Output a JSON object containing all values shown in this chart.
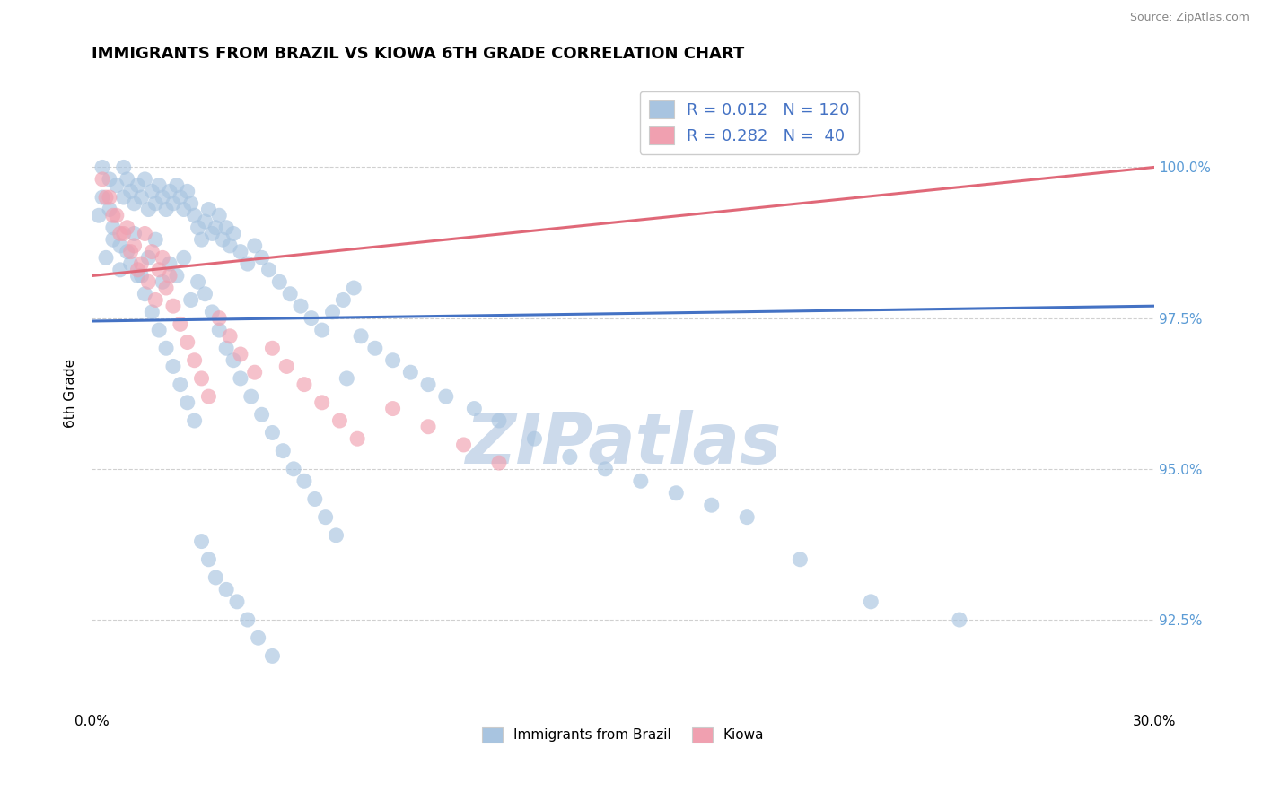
{
  "title": "IMMIGRANTS FROM BRAZIL VS KIOWA 6TH GRADE CORRELATION CHART",
  "source": "Source: ZipAtlas.com",
  "ylabel": "6th Grade",
  "xlim": [
    0.0,
    30.0
  ],
  "ylim": [
    91.0,
    101.5
  ],
  "yticks": [
    92.5,
    95.0,
    97.5,
    100.0
  ],
  "ytick_labels": [
    "92.5%",
    "95.0%",
    "97.5%",
    "100.0%"
  ],
  "xticks": [
    0.0,
    30.0
  ],
  "xtick_labels": [
    "0.0%",
    "30.0%"
  ],
  "legend_R1": "R = 0.012",
  "legend_N1": "N = 120",
  "legend_R2": "R = 0.282",
  "legend_N2": "N =  40",
  "blue_color": "#a8c4e0",
  "pink_color": "#f0a0b0",
  "blue_line_color": "#4472c4",
  "pink_line_color": "#e06878",
  "watermark": "ZIPatlas",
  "watermark_color": "#ccdaeb",
  "blue_scatter_x": [
    0.3,
    0.5,
    0.5,
    0.7,
    0.9,
    0.9,
    1.0,
    1.1,
    1.2,
    1.3,
    1.4,
    1.5,
    1.6,
    1.7,
    1.8,
    1.9,
    2.0,
    2.1,
    2.2,
    2.3,
    2.4,
    2.5,
    2.6,
    2.7,
    2.8,
    2.9,
    3.0,
    3.1,
    3.2,
    3.3,
    3.4,
    3.5,
    3.6,
    3.7,
    3.8,
    3.9,
    4.0,
    4.2,
    4.4,
    4.6,
    4.8,
    5.0,
    5.3,
    5.6,
    5.9,
    6.2,
    6.5,
    6.8,
    7.1,
    7.4,
    0.4,
    0.6,
    0.8,
    1.0,
    1.2,
    1.4,
    1.6,
    1.8,
    2.0,
    2.2,
    2.4,
    2.6,
    2.8,
    3.0,
    3.2,
    3.4,
    3.6,
    3.8,
    4.0,
    4.2,
    4.5,
    4.8,
    5.1,
    5.4,
    5.7,
    6.0,
    6.3,
    6.6,
    6.9,
    7.2,
    7.6,
    8.0,
    8.5,
    9.0,
    9.5,
    10.0,
    10.8,
    11.5,
    12.5,
    13.5,
    14.5,
    15.5,
    16.5,
    17.5,
    18.5,
    20.0,
    22.0,
    24.5,
    0.2,
    0.3,
    0.6,
    0.8,
    1.1,
    1.3,
    1.5,
    1.7,
    1.9,
    2.1,
    2.3,
    2.5,
    2.7,
    2.9,
    3.1,
    3.3,
    3.5,
    3.8,
    4.1,
    4.4,
    4.7,
    5.1
  ],
  "blue_scatter_y": [
    100.0,
    99.8,
    99.3,
    99.7,
    99.5,
    100.0,
    99.8,
    99.6,
    99.4,
    99.7,
    99.5,
    99.8,
    99.3,
    99.6,
    99.4,
    99.7,
    99.5,
    99.3,
    99.6,
    99.4,
    99.7,
    99.5,
    99.3,
    99.6,
    99.4,
    99.2,
    99.0,
    98.8,
    99.1,
    99.3,
    98.9,
    99.0,
    99.2,
    98.8,
    99.0,
    98.7,
    98.9,
    98.6,
    98.4,
    98.7,
    98.5,
    98.3,
    98.1,
    97.9,
    97.7,
    97.5,
    97.3,
    97.6,
    97.8,
    98.0,
    98.5,
    98.8,
    98.3,
    98.6,
    98.9,
    98.2,
    98.5,
    98.8,
    98.1,
    98.4,
    98.2,
    98.5,
    97.8,
    98.1,
    97.9,
    97.6,
    97.3,
    97.0,
    96.8,
    96.5,
    96.2,
    95.9,
    95.6,
    95.3,
    95.0,
    94.8,
    94.5,
    94.2,
    93.9,
    96.5,
    97.2,
    97.0,
    96.8,
    96.6,
    96.4,
    96.2,
    96.0,
    95.8,
    95.5,
    95.2,
    95.0,
    94.8,
    94.6,
    94.4,
    94.2,
    93.5,
    92.8,
    92.5,
    99.2,
    99.5,
    99.0,
    98.7,
    98.4,
    98.2,
    97.9,
    97.6,
    97.3,
    97.0,
    96.7,
    96.4,
    96.1,
    95.8,
    93.8,
    93.5,
    93.2,
    93.0,
    92.8,
    92.5,
    92.2,
    91.9
  ],
  "pink_scatter_x": [
    0.3,
    0.5,
    0.7,
    0.9,
    1.1,
    1.3,
    1.5,
    1.7,
    1.9,
    2.1,
    2.3,
    2.5,
    2.7,
    2.9,
    3.1,
    3.3,
    3.6,
    3.9,
    4.2,
    4.6,
    5.1,
    5.5,
    6.0,
    6.5,
    7.0,
    7.5,
    8.5,
    9.5,
    10.5,
    11.5,
    0.4,
    0.6,
    0.8,
    1.0,
    1.2,
    1.4,
    1.6,
    1.8,
    2.0,
    2.2
  ],
  "pink_scatter_y": [
    99.8,
    99.5,
    99.2,
    98.9,
    98.6,
    98.3,
    98.9,
    98.6,
    98.3,
    98.0,
    97.7,
    97.4,
    97.1,
    96.8,
    96.5,
    96.2,
    97.5,
    97.2,
    96.9,
    96.6,
    97.0,
    96.7,
    96.4,
    96.1,
    95.8,
    95.5,
    96.0,
    95.7,
    95.4,
    95.1,
    99.5,
    99.2,
    98.9,
    99.0,
    98.7,
    98.4,
    98.1,
    97.8,
    98.5,
    98.2
  ],
  "blue_trend_x": [
    0.0,
    30.0
  ],
  "blue_trend_y": [
    97.45,
    97.7
  ],
  "pink_trend_x": [
    0.0,
    30.0
  ],
  "pink_trend_y": [
    98.2,
    100.0
  ],
  "bg_color": "#ffffff",
  "grid_color": "#d0d0d0",
  "right_axis_color": "#5b9bd5"
}
